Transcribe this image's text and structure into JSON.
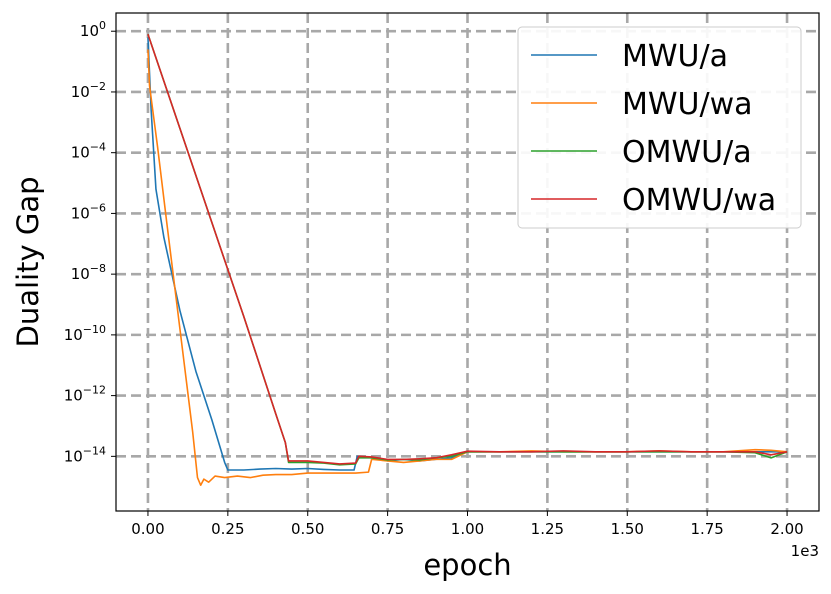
{
  "chart_data": {
    "type": "line",
    "xlabel": "epoch",
    "ylabel": "Duality Gap",
    "x_offset_label": "1e3",
    "x_scale_factor": 1000,
    "yscale": "log",
    "xlim": [
      -100,
      2100
    ],
    "ylim_log10": [
      -15.8,
      0.6
    ],
    "grid": true,
    "legend_position": "top-right",
    "x_ticks": [
      {
        "value": 0,
        "label": "0.00"
      },
      {
        "value": 250,
        "label": "0.25"
      },
      {
        "value": 500,
        "label": "0.50"
      },
      {
        "value": 750,
        "label": "0.75"
      },
      {
        "value": 1000,
        "label": "1.00"
      },
      {
        "value": 1250,
        "label": "1.25"
      },
      {
        "value": 1500,
        "label": "1.50"
      },
      {
        "value": 1750,
        "label": "1.75"
      },
      {
        "value": 2000,
        "label": "2.00"
      }
    ],
    "y_ticks": [
      {
        "log10": 0,
        "base": "10",
        "exp": "0"
      },
      {
        "log10": -2,
        "base": "10",
        "exp": "−2"
      },
      {
        "log10": -4,
        "base": "10",
        "exp": "−4"
      },
      {
        "log10": -6,
        "base": "10",
        "exp": "−6"
      },
      {
        "log10": -8,
        "base": "10",
        "exp": "−8"
      },
      {
        "log10": -10,
        "base": "10",
        "exp": "−10"
      },
      {
        "log10": -12,
        "base": "10",
        "exp": "−12"
      },
      {
        "log10": -14,
        "base": "10",
        "exp": "−14"
      }
    ],
    "series": [
      {
        "name": "MWU/a",
        "color": "#1f77b4",
        "points_log10": [
          [
            0,
            -0.2
          ],
          [
            10,
            -2.6
          ],
          [
            25,
            -5.2
          ],
          [
            50,
            -6.8
          ],
          [
            100,
            -9.2
          ],
          [
            150,
            -11.2
          ],
          [
            200,
            -12.8
          ],
          [
            240,
            -14.2
          ],
          [
            250,
            -14.45
          ],
          [
            300,
            -14.45
          ],
          [
            350,
            -14.42
          ],
          [
            400,
            -14.4
          ],
          [
            450,
            -14.42
          ],
          [
            500,
            -14.4
          ],
          [
            550,
            -14.43
          ],
          [
            600,
            -14.45
          ],
          [
            645,
            -14.45
          ],
          [
            655,
            -14.0
          ],
          [
            700,
            -14.05
          ],
          [
            750,
            -14.15
          ],
          [
            800,
            -14.1
          ],
          [
            850,
            -14.15
          ],
          [
            900,
            -14.1
          ],
          [
            950,
            -14.05
          ],
          [
            1000,
            -13.85
          ],
          [
            1100,
            -13.85
          ],
          [
            1200,
            -13.85
          ],
          [
            1300,
            -13.85
          ],
          [
            1400,
            -13.85
          ],
          [
            1500,
            -13.85
          ],
          [
            1600,
            -13.85
          ],
          [
            1700,
            -13.85
          ],
          [
            1800,
            -13.85
          ],
          [
            1900,
            -13.85
          ],
          [
            1950,
            -13.85
          ],
          [
            2000,
            -13.85
          ]
        ]
      },
      {
        "name": "MWU/wa",
        "color": "#ff7f0e",
        "points_log10": [
          [
            0,
            -0.6
          ],
          [
            5,
            -1.8
          ],
          [
            15,
            -2.6
          ],
          [
            30,
            -3.8
          ],
          [
            60,
            -6.4
          ],
          [
            100,
            -9.8
          ],
          [
            140,
            -13.2
          ],
          [
            155,
            -14.7
          ],
          [
            165,
            -14.95
          ],
          [
            175,
            -14.75
          ],
          [
            190,
            -14.85
          ],
          [
            210,
            -14.65
          ],
          [
            240,
            -14.7
          ],
          [
            280,
            -14.65
          ],
          [
            320,
            -14.7
          ],
          [
            360,
            -14.62
          ],
          [
            400,
            -14.6
          ],
          [
            450,
            -14.6
          ],
          [
            500,
            -14.55
          ],
          [
            550,
            -14.55
          ],
          [
            600,
            -14.55
          ],
          [
            650,
            -14.55
          ],
          [
            690,
            -14.52
          ],
          [
            700,
            -14.1
          ],
          [
            750,
            -14.15
          ],
          [
            800,
            -14.2
          ],
          [
            850,
            -14.15
          ],
          [
            900,
            -14.1
          ],
          [
            950,
            -14.1
          ],
          [
            1000,
            -13.85
          ],
          [
            1100,
            -13.85
          ],
          [
            1200,
            -13.82
          ],
          [
            1300,
            -13.85
          ],
          [
            1400,
            -13.85
          ],
          [
            1500,
            -13.85
          ],
          [
            1600,
            -13.82
          ],
          [
            1700,
            -13.85
          ],
          [
            1800,
            -13.85
          ],
          [
            1900,
            -13.78
          ],
          [
            1950,
            -13.8
          ],
          [
            2000,
            -13.85
          ]
        ]
      },
      {
        "name": "OMWU/a",
        "color": "#2ca02c",
        "points_log10": [
          [
            0,
            -0.1
          ],
          [
            100,
            -3.2
          ],
          [
            200,
            -6.3
          ],
          [
            300,
            -9.4
          ],
          [
            400,
            -12.6
          ],
          [
            430,
            -13.55
          ],
          [
            440,
            -14.2
          ],
          [
            500,
            -14.2
          ],
          [
            550,
            -14.22
          ],
          [
            600,
            -14.28
          ],
          [
            650,
            -14.25
          ],
          [
            660,
            -14.05
          ],
          [
            700,
            -14.05
          ],
          [
            750,
            -14.12
          ],
          [
            800,
            -14.1
          ],
          [
            850,
            -14.12
          ],
          [
            900,
            -14.05
          ],
          [
            950,
            -14.0
          ],
          [
            1000,
            -13.85
          ],
          [
            1100,
            -13.85
          ],
          [
            1200,
            -13.85
          ],
          [
            1300,
            -13.85
          ],
          [
            1400,
            -13.85
          ],
          [
            1500,
            -13.85
          ],
          [
            1600,
            -13.85
          ],
          [
            1700,
            -13.85
          ],
          [
            1800,
            -13.85
          ],
          [
            1900,
            -13.88
          ],
          [
            1950,
            -14.05
          ],
          [
            1975,
            -13.95
          ],
          [
            2000,
            -13.85
          ]
        ]
      },
      {
        "name": "OMWU/wa",
        "color": "#d62728",
        "points_log10": [
          [
            0,
            -0.1
          ],
          [
            100,
            -3.2
          ],
          [
            200,
            -6.3
          ],
          [
            300,
            -9.4
          ],
          [
            400,
            -12.6
          ],
          [
            430,
            -13.55
          ],
          [
            440,
            -14.15
          ],
          [
            500,
            -14.15
          ],
          [
            550,
            -14.2
          ],
          [
            600,
            -14.25
          ],
          [
            650,
            -14.22
          ],
          [
            660,
            -14.0
          ],
          [
            700,
            -14.02
          ],
          [
            750,
            -14.1
          ],
          [
            800,
            -14.1
          ],
          [
            850,
            -14.08
          ],
          [
            900,
            -14.05
          ],
          [
            950,
            -13.95
          ],
          [
            1000,
            -13.83
          ],
          [
            1100,
            -13.85
          ],
          [
            1200,
            -13.85
          ],
          [
            1300,
            -13.82
          ],
          [
            1400,
            -13.85
          ],
          [
            1500,
            -13.85
          ],
          [
            1600,
            -13.82
          ],
          [
            1700,
            -13.85
          ],
          [
            1800,
            -13.85
          ],
          [
            1900,
            -13.85
          ],
          [
            1950,
            -13.95
          ],
          [
            2000,
            -13.85
          ]
        ]
      }
    ]
  }
}
